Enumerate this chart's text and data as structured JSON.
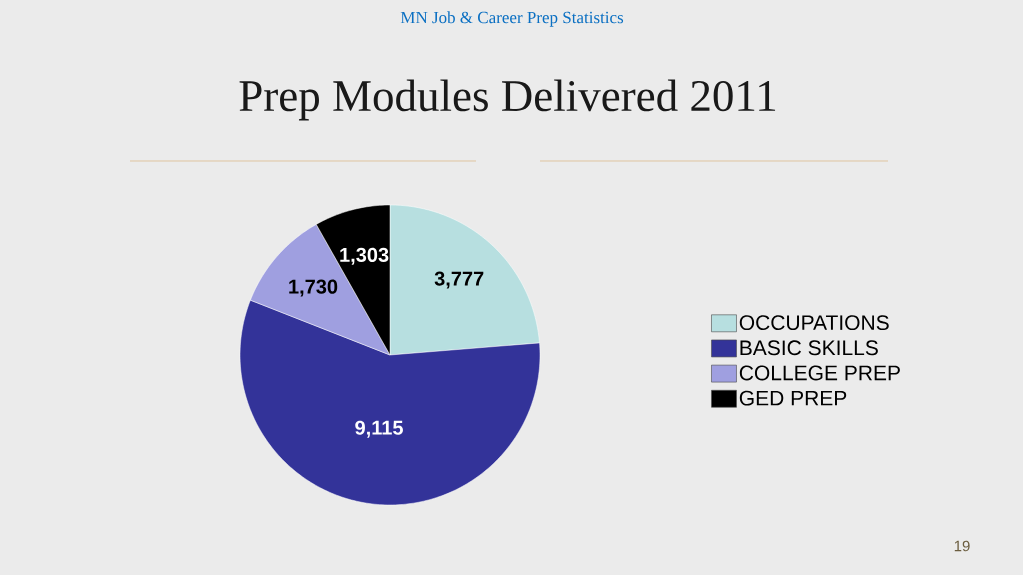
{
  "chart_data": {
    "type": "pie",
    "title": "Prep Modules Delivered 2011",
    "annotations": [
      "MN Job & Career Prep Statistics",
      "19"
    ],
    "categories": [
      "OCCUPATIONS",
      "BASIC SKILLS",
      "COLLEGE PREP",
      "GED PREP"
    ],
    "values": [
      3777,
      9115,
      1730,
      1303
    ],
    "value_labels": [
      "3,777",
      "9,115",
      "1,730",
      "1,303"
    ],
    "colors": [
      "#b7dfe0",
      "#333399",
      "#9f9fe0",
      "#000000"
    ],
    "legend": "right"
  }
}
